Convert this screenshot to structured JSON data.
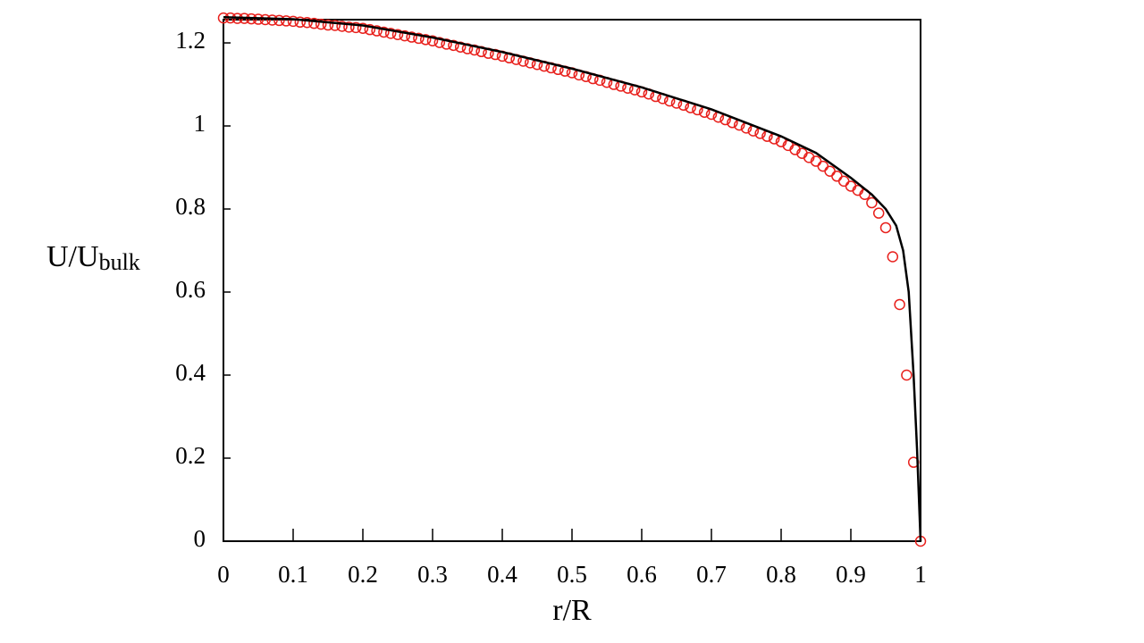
{
  "chart_data": {
    "type": "scatter",
    "x_label": "r/R",
    "y_label": {
      "main": "U/U",
      "sub": "bulk"
    },
    "xlim": [
      0,
      1
    ],
    "ylim": [
      0,
      1.256
    ],
    "xticks": [
      0,
      0.1,
      0.2,
      0.3,
      0.4,
      0.5,
      0.6,
      0.7,
      0.8,
      0.9,
      1
    ],
    "yticks": [
      0,
      0.2,
      0.4,
      0.6,
      0.8,
      1,
      1.2
    ],
    "series": [
      {
        "style": "markers",
        "color": "#e8201c",
        "x": [
          0,
          0.01,
          0.02,
          0.03,
          0.04,
          0.05,
          0.06,
          0.07,
          0.08,
          0.09,
          0.1,
          0.11,
          0.12,
          0.13,
          0.14,
          0.15,
          0.16,
          0.17,
          0.18,
          0.19,
          0.2,
          0.21,
          0.22,
          0.23,
          0.24,
          0.25,
          0.26,
          0.27,
          0.28,
          0.29,
          0.3,
          0.31,
          0.32,
          0.33,
          0.34,
          0.35,
          0.36,
          0.37,
          0.38,
          0.39,
          0.4,
          0.41,
          0.42,
          0.43,
          0.44,
          0.45,
          0.46,
          0.47,
          0.48,
          0.49,
          0.5,
          0.51,
          0.52,
          0.53,
          0.54,
          0.55,
          0.56,
          0.57,
          0.58,
          0.59,
          0.6,
          0.61,
          0.62,
          0.63,
          0.64,
          0.65,
          0.66,
          0.67,
          0.68,
          0.69,
          0.7,
          0.71,
          0.72,
          0.73,
          0.74,
          0.75,
          0.76,
          0.77,
          0.78,
          0.79,
          0.8,
          0.81,
          0.82,
          0.83,
          0.84,
          0.85,
          0.86,
          0.87,
          0.88,
          0.89,
          0.9,
          0.91,
          0.92,
          0.93,
          0.94,
          0.95,
          0.96,
          0.97,
          0.98,
          0.99,
          1
        ],
        "values": [
          1.26,
          1.26,
          1.259,
          1.259,
          1.258,
          1.257,
          1.256,
          1.255,
          1.254,
          1.253,
          1.252,
          1.25,
          1.249,
          1.247,
          1.245,
          1.243,
          1.242,
          1.24,
          1.238,
          1.237,
          1.235,
          1.232,
          1.229,
          1.226,
          1.223,
          1.22,
          1.217,
          1.214,
          1.211,
          1.208,
          1.205,
          1.201,
          1.197,
          1.194,
          1.19,
          1.186,
          1.183,
          1.179,
          1.175,
          1.172,
          1.168,
          1.164,
          1.16,
          1.156,
          1.152,
          1.148,
          1.144,
          1.14,
          1.136,
          1.132,
          1.128,
          1.123,
          1.119,
          1.114,
          1.11,
          1.105,
          1.1,
          1.096,
          1.091,
          1.087,
          1.082,
          1.077,
          1.071,
          1.066,
          1.06,
          1.055,
          1.05,
          1.044,
          1.039,
          1.033,
          1.028,
          1.021,
          1.015,
          1.008,
          1.002,
          0.995,
          0.988,
          0.982,
          0.975,
          0.969,
          0.962,
          0.953,
          0.943,
          0.934,
          0.924,
          0.915,
          0.903,
          0.891,
          0.879,
          0.867,
          0.855,
          0.845,
          0.835,
          0.815,
          0.79,
          0.755,
          0.685,
          0.57,
          0.4,
          0.19,
          0
        ]
      },
      {
        "style": "line",
        "color": "#000000",
        "x": [
          0,
          0.1,
          0.2,
          0.3,
          0.4,
          0.5,
          0.6,
          0.7,
          0.8,
          0.85,
          0.9,
          0.93,
          0.95,
          0.965,
          0.975,
          0.983,
          0.99,
          0.995,
          1
        ],
        "values": [
          1.262,
          1.257,
          1.242,
          1.213,
          1.178,
          1.138,
          1.093,
          1.04,
          0.975,
          0.935,
          0.875,
          0.835,
          0.8,
          0.76,
          0.7,
          0.6,
          0.4,
          0.22,
          0
        ]
      }
    ]
  }
}
